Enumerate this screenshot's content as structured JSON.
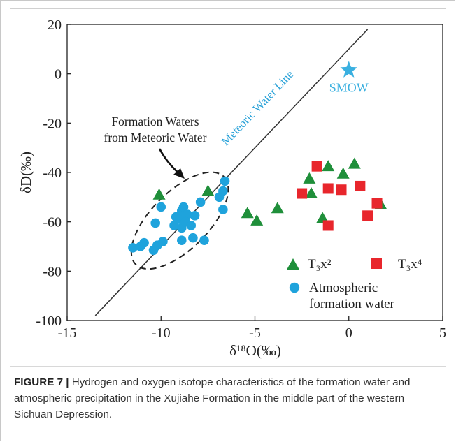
{
  "figure": {
    "caption_label": "FIGURE 7 |",
    "caption_text": " Hydrogen and oxygen isotope characteristics of the formation water and atmospheric precipitation in the Xujiahe Formation in the middle part of the western Sichuan Depression."
  },
  "chart_data": {
    "type": "scatter",
    "xlabel": "δ¹⁸O(‰)",
    "ylabel": "δD(‰)",
    "xlim": [
      -15,
      5
    ],
    "ylim": [
      -100,
      20
    ],
    "x_ticks": [
      -15,
      -10,
      -5,
      0,
      5
    ],
    "y_ticks": [
      20,
      0,
      -20,
      -40,
      -60,
      -80,
      -100
    ],
    "grid": false,
    "legend_position": "bottom-right",
    "series": [
      {
        "name": "T₃x²",
        "marker": "triangle",
        "color": "#1f8f3a",
        "points": [
          [
            -10.1,
            -49
          ],
          [
            -7.5,
            -47.5
          ],
          [
            -5.4,
            -56.5
          ],
          [
            -4.9,
            -59.5
          ],
          [
            -3.8,
            -54.5
          ],
          [
            -2.1,
            -42.5
          ],
          [
            -2.0,
            -48.5
          ],
          [
            -1.4,
            -58.5
          ],
          [
            -1.1,
            -37.5
          ],
          [
            -0.3,
            -40.5
          ],
          [
            0.3,
            -36.5
          ],
          [
            1.7,
            -53
          ]
        ]
      },
      {
        "name": "T₃x⁴",
        "marker": "square",
        "color": "#e8262c",
        "points": [
          [
            -2.5,
            -48.5
          ],
          [
            -1.7,
            -37.5
          ],
          [
            -1.1,
            -46.5
          ],
          [
            -0.4,
            -47
          ],
          [
            0.6,
            -45.5
          ],
          [
            1.0,
            -57.5
          ],
          [
            1.5,
            -52.5
          ],
          [
            -1.1,
            -61.5
          ]
        ]
      },
      {
        "name": "Atmospheric formation water",
        "marker": "circle",
        "color": "#1fa3dc",
        "points": [
          [
            -11.5,
            -70.5
          ],
          [
            -11.1,
            -70
          ],
          [
            -10.9,
            -68.5
          ],
          [
            -10.4,
            -71.5
          ],
          [
            -10.2,
            -69.5
          ],
          [
            -9.9,
            -68
          ],
          [
            -10.3,
            -60.5
          ],
          [
            -10.0,
            -54
          ],
          [
            -9.2,
            -58
          ],
          [
            -9.3,
            -61.5
          ],
          [
            -9.0,
            -59
          ],
          [
            -8.9,
            -55.5
          ],
          [
            -8.8,
            -54
          ],
          [
            -8.6,
            -57
          ],
          [
            -8.9,
            -62.5
          ],
          [
            -8.7,
            -60
          ],
          [
            -8.4,
            -61.5
          ],
          [
            -8.2,
            -57.5
          ],
          [
            -7.9,
            -52
          ],
          [
            -8.9,
            -67.5
          ],
          [
            -8.3,
            -66.5
          ],
          [
            -7.7,
            -67.5
          ],
          [
            -6.9,
            -50
          ],
          [
            -6.7,
            -47.5
          ],
          [
            -6.6,
            -43.5
          ],
          [
            -6.7,
            -55
          ]
        ]
      },
      {
        "name": "SMOW",
        "marker": "star",
        "color": "#3ab0e0",
        "points": [
          [
            0,
            1.5
          ]
        ]
      }
    ],
    "lines": [
      {
        "name": "Meteoric Water Line",
        "color": "#333333",
        "points": [
          [
            -13.5,
            -98
          ],
          [
            1.0,
            18
          ]
        ]
      }
    ],
    "annotations": {
      "mwl_label": "Meteoric Water Line",
      "smow_label": "SMOW",
      "formation_line1": "Formation Waters",
      "formation_line2": "from Meteoric Water"
    },
    "legend": {
      "t3x2_label": "T₃x²",
      "t3x4_label": "T₃x⁴",
      "atm_line1": "Atmospheric",
      "atm_line2": "formation water"
    },
    "ellipse": {
      "cx": -9.0,
      "cy": -59.5,
      "rx": 3.5,
      "ry": 12.5,
      "rotation_deg": -45
    }
  }
}
